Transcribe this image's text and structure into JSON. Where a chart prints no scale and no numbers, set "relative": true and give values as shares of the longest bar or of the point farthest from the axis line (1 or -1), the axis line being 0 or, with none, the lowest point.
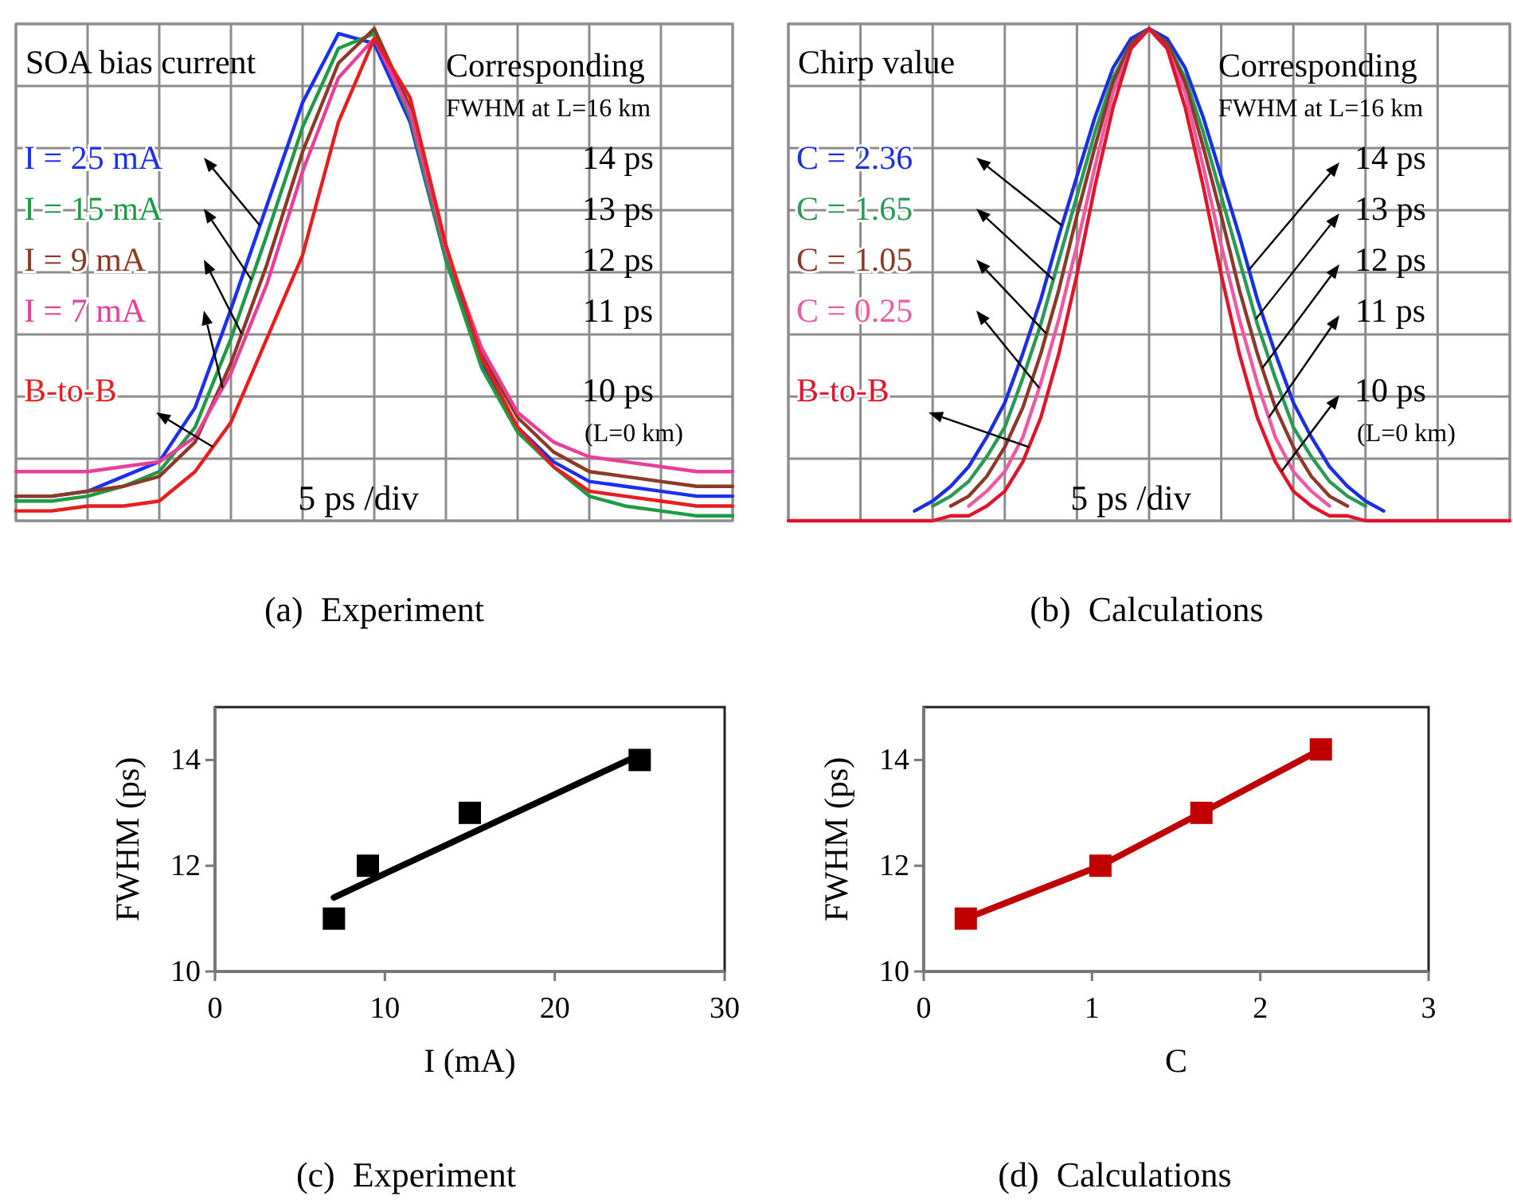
{
  "chart_data": [
    {
      "type": "line",
      "title": "(a)  Experiment",
      "legend_title": "SOA bias current",
      "relative": true,
      "grid": true,
      "categories": [
        null,
        null,
        null,
        null,
        null,
        null,
        null,
        null,
        null,
        null,
        null,
        null,
        null,
        null,
        null,
        null,
        null,
        null,
        null,
        null,
        null
      ],
      "series": [
        {
          "name": "I = 25 mA",
          "color": "#1a2ff0",
          "values": [
            0.05,
            0.05,
            0.06,
            0.09,
            0.12,
            0.23,
            0.43,
            0.64,
            0.85,
            0.99,
            0.97,
            0.81,
            0.53,
            0.32,
            0.19,
            0.12,
            0.08,
            0.07,
            0.06,
            0.05,
            0.05
          ]
        },
        {
          "name": "I = 15 mA",
          "color": "#1f9a45",
          "values": [
            0.04,
            0.04,
            0.05,
            0.07,
            0.1,
            0.19,
            0.37,
            0.58,
            0.8,
            0.96,
            0.99,
            0.82,
            0.53,
            0.31,
            0.18,
            0.11,
            0.05,
            0.03,
            0.02,
            0.01,
            0.01
          ]
        },
        {
          "name": "I = 9 mA",
          "color": "#8b3a26",
          "values": [
            0.05,
            0.05,
            0.06,
            0.07,
            0.09,
            0.16,
            0.32,
            0.52,
            0.75,
            0.93,
            1,
            0.84,
            0.55,
            0.34,
            0.21,
            0.14,
            0.1,
            0.09,
            0.08,
            0.07,
            0.07
          ]
        },
        {
          "name": "I = 7 mA",
          "color": "#e8409a",
          "values": [
            0.1,
            0.1,
            0.1,
            0.11,
            0.12,
            0.17,
            0.3,
            0.48,
            0.71,
            0.9,
            0.98,
            0.83,
            0.55,
            0.35,
            0.22,
            0.16,
            0.13,
            0.12,
            0.11,
            0.1,
            0.1
          ]
        },
        {
          "name": "B-to-B",
          "color": "#e81e1e",
          "values": [
            0.02,
            0.02,
            0.03,
            0.03,
            0.04,
            0.1,
            0.2,
            0.37,
            0.54,
            0.81,
            0.98,
            0.86,
            0.56,
            0.33,
            0.19,
            0.11,
            0.06,
            0.05,
            0.04,
            0.03,
            0.03
          ]
        }
      ],
      "annotations": [
        "Corresponding",
        "FWHM at L=16 km",
        "14 ps",
        "13 ps",
        "12 ps",
        "11 ps",
        "10 ps",
        "(L=0 km)",
        "5 ps /div"
      ]
    },
    {
      "type": "line",
      "title": "(b)  Calculations",
      "legend_title": "Chirp value",
      "relative": true,
      "grid": true,
      "categories": [
        null,
        null,
        null,
        null,
        null,
        null,
        null,
        null,
        null,
        null,
        null,
        null,
        null,
        null,
        null,
        null,
        null,
        null,
        null,
        null,
        null,
        null,
        null,
        null,
        null,
        null,
        null,
        null,
        null,
        null,
        null,
        null,
        null,
        null,
        null,
        null,
        null,
        null,
        null,
        null,
        null
      ],
      "series": [
        {
          "name": "C = 2.36",
          "color": "#1a2fe0",
          "values": [
            null,
            null,
            null,
            null,
            null,
            null,
            null,
            0.02,
            0.04,
            0.07,
            0.11,
            0.17,
            0.24,
            0.34,
            0.45,
            0.58,
            0.7,
            0.82,
            0.92,
            0.98,
            1,
            0.98,
            0.92,
            0.82,
            0.7,
            0.58,
            0.45,
            0.34,
            0.24,
            0.17,
            0.11,
            0.07,
            0.04,
            0.02,
            null,
            null,
            null,
            null,
            null,
            null,
            null
          ]
        },
        {
          "name": "C = 1.65",
          "color": "#2a9a55",
          "values": [
            null,
            null,
            null,
            null,
            null,
            null,
            null,
            null,
            0.03,
            0.05,
            0.08,
            0.13,
            0.19,
            0.29,
            0.4,
            0.53,
            0.66,
            0.79,
            0.9,
            0.97,
            1,
            0.97,
            0.9,
            0.79,
            0.66,
            0.53,
            0.4,
            0.29,
            0.19,
            0.13,
            0.08,
            0.05,
            0.03,
            null,
            null,
            null,
            null,
            null,
            null,
            null,
            null
          ]
        },
        {
          "name": "C = 1.05",
          "color": "#8b3a2a",
          "values": [
            null,
            null,
            null,
            null,
            null,
            null,
            null,
            null,
            null,
            0.03,
            0.05,
            0.09,
            0.15,
            0.23,
            0.34,
            0.47,
            0.62,
            0.76,
            0.89,
            0.97,
            1,
            0.97,
            0.89,
            0.76,
            0.62,
            0.47,
            0.34,
            0.23,
            0.15,
            0.09,
            0.05,
            0.03,
            null,
            null,
            null,
            null,
            null,
            null,
            null,
            null,
            null
          ]
        },
        {
          "name": "C = 0.25",
          "color": "#ee5aa0",
          "values": [
            null,
            null,
            null,
            null,
            null,
            null,
            null,
            null,
            null,
            null,
            0.03,
            0.06,
            0.1,
            0.17,
            0.28,
            0.41,
            0.56,
            0.72,
            0.87,
            0.96,
            1,
            0.96,
            0.87,
            0.72,
            0.56,
            0.41,
            0.28,
            0.17,
            0.1,
            0.06,
            0.03,
            null,
            null,
            null,
            null,
            null,
            null,
            null,
            null,
            null,
            null
          ]
        },
        {
          "name": "B-to-B",
          "color": "#e0142a",
          "values": [
            0,
            0,
            0,
            0,
            0,
            0,
            0,
            0,
            0,
            0.01,
            0.01,
            0.03,
            0.06,
            0.12,
            0.21,
            0.34,
            0.5,
            0.68,
            0.84,
            0.96,
            1,
            0.96,
            0.84,
            0.68,
            0.5,
            0.34,
            0.21,
            0.12,
            0.06,
            0.03,
            0.01,
            0.01,
            0,
            0,
            0,
            0,
            0,
            0,
            0,
            0,
            0
          ]
        }
      ],
      "annotations": [
        "Corresponding",
        "FWHM at L=16 km",
        "14 ps",
        "13 ps",
        "12 ps",
        "11 ps",
        "10 ps",
        "(L=0 km)",
        "5 ps /div"
      ]
    },
    {
      "type": "scatter",
      "title": "(c)  Experiment",
      "xlabel": "I (mA)",
      "ylabel": "FWHM (ps)",
      "xlim": [
        0,
        30
      ],
      "xticks": [
        0,
        10,
        20,
        30
      ],
      "ylim": [
        10,
        15
      ],
      "yticks": [
        10,
        12,
        14
      ],
      "marker": "square",
      "series": [
        {
          "color": "#000000",
          "x": [
            7,
            9,
            15,
            25
          ],
          "values": [
            11,
            12,
            13,
            14
          ]
        },
        {
          "type": "line",
          "color": "#000000",
          "x": [
            7,
            25
          ],
          "values": [
            11.4,
            14.1
          ],
          "marker": "none"
        }
      ]
    },
    {
      "type": "line",
      "title": "(d)  Calculations",
      "xlabel": "C",
      "ylabel": "FWHM (ps)",
      "xlim": [
        0,
        3
      ],
      "xticks": [
        0,
        1,
        2,
        3
      ],
      "ylim": [
        10,
        15
      ],
      "yticks": [
        10,
        12,
        14
      ],
      "marker": "square",
      "series": [
        {
          "color": "#c00000",
          "x": [
            0.25,
            1.05,
            1.65,
            2.36
          ],
          "values": [
            11,
            12,
            13,
            14.2
          ]
        }
      ]
    }
  ]
}
